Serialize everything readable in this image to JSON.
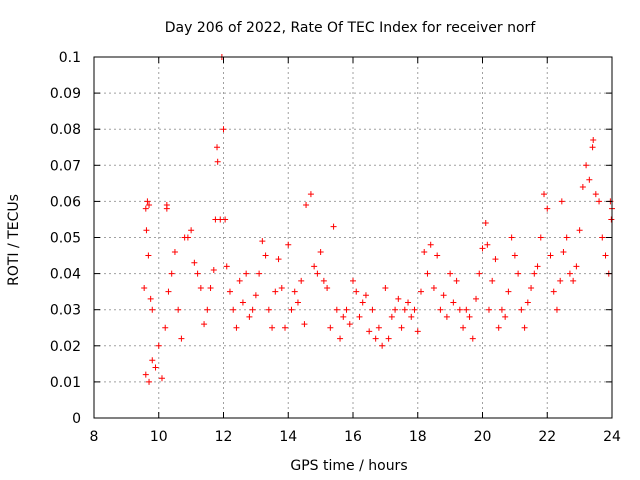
{
  "chart_data": {
    "type": "scatter",
    "title": "Day 206 of 2022, Rate Of TEC Index for receiver norf",
    "xlabel": "GPS time / hours",
    "ylabel": "ROTI / TECUs",
    "xlim": [
      8,
      24
    ],
    "ylim": [
      0,
      0.1
    ],
    "x_ticks": [
      "8",
      "10",
      "12",
      "14",
      "16",
      "18",
      "20",
      "22",
      "24"
    ],
    "y_ticks": [
      "0",
      "0.01",
      "0.02",
      "0.03",
      "0.04",
      "0.05",
      "0.06",
      "0.07",
      "0.08",
      "0.09",
      "0.1"
    ],
    "grid": true,
    "marker": "+",
    "color": "#ff0000",
    "series": [
      {
        "points": [
          [
            9.6,
            0.058
          ],
          [
            9.65,
            0.06
          ],
          [
            9.7,
            0.059
          ],
          [
            9.62,
            0.052
          ],
          [
            9.68,
            0.045
          ],
          [
            9.55,
            0.036
          ],
          [
            9.75,
            0.033
          ],
          [
            9.8,
            0.03
          ],
          [
            9.6,
            0.012
          ],
          [
            9.7,
            0.01
          ],
          [
            9.8,
            0.016
          ],
          [
            9.9,
            0.014
          ],
          [
            10.0,
            0.02
          ],
          [
            10.1,
            0.011
          ],
          [
            10.2,
            0.025
          ],
          [
            10.3,
            0.035
          ],
          [
            10.25,
            0.059
          ],
          [
            10.25,
            0.058
          ],
          [
            10.4,
            0.04
          ],
          [
            10.5,
            0.046
          ],
          [
            10.6,
            0.03
          ],
          [
            10.7,
            0.022
          ],
          [
            10.8,
            0.05
          ],
          [
            10.9,
            0.05
          ],
          [
            11.0,
            0.052
          ],
          [
            11.1,
            0.043
          ],
          [
            11.2,
            0.04
          ],
          [
            11.3,
            0.036
          ],
          [
            11.4,
            0.026
          ],
          [
            11.5,
            0.03
          ],
          [
            11.6,
            0.036
          ],
          [
            11.7,
            0.041
          ],
          [
            11.75,
            0.055
          ],
          [
            11.8,
            0.075
          ],
          [
            11.82,
            0.071
          ],
          [
            11.9,
            0.055
          ],
          [
            11.95,
            0.1
          ],
          [
            12.0,
            0.08
          ],
          [
            12.05,
            0.055
          ],
          [
            12.1,
            0.042
          ],
          [
            12.2,
            0.035
          ],
          [
            12.3,
            0.03
          ],
          [
            12.4,
            0.025
          ],
          [
            12.5,
            0.038
          ],
          [
            12.6,
            0.032
          ],
          [
            12.7,
            0.04
          ],
          [
            12.8,
            0.028
          ],
          [
            12.9,
            0.03
          ],
          [
            13.0,
            0.034
          ],
          [
            13.1,
            0.04
          ],
          [
            13.2,
            0.049
          ],
          [
            13.3,
            0.045
          ],
          [
            13.4,
            0.03
          ],
          [
            13.5,
            0.025
          ],
          [
            13.6,
            0.035
          ],
          [
            13.7,
            0.044
          ],
          [
            13.8,
            0.036
          ],
          [
            13.9,
            0.025
          ],
          [
            14.0,
            0.048
          ],
          [
            14.1,
            0.03
          ],
          [
            14.2,
            0.035
          ],
          [
            14.3,
            0.032
          ],
          [
            14.4,
            0.038
          ],
          [
            14.5,
            0.026
          ],
          [
            14.55,
            0.059
          ],
          [
            14.7,
            0.062
          ],
          [
            14.8,
            0.042
          ],
          [
            14.9,
            0.04
          ],
          [
            15.0,
            0.046
          ],
          [
            15.1,
            0.038
          ],
          [
            15.2,
            0.036
          ],
          [
            15.3,
            0.025
          ],
          [
            15.4,
            0.053
          ],
          [
            15.5,
            0.03
          ],
          [
            15.6,
            0.022
          ],
          [
            15.7,
            0.028
          ],
          [
            15.8,
            0.03
          ],
          [
            15.9,
            0.026
          ],
          [
            16.0,
            0.038
          ],
          [
            16.1,
            0.035
          ],
          [
            16.2,
            0.028
          ],
          [
            16.3,
            0.032
          ],
          [
            16.4,
            0.034
          ],
          [
            16.5,
            0.024
          ],
          [
            16.6,
            0.03
          ],
          [
            16.7,
            0.022
          ],
          [
            16.8,
            0.025
          ],
          [
            16.9,
            0.02
          ],
          [
            17.0,
            0.036
          ],
          [
            17.1,
            0.022
          ],
          [
            17.2,
            0.028
          ],
          [
            17.3,
            0.03
          ],
          [
            17.4,
            0.033
          ],
          [
            17.5,
            0.025
          ],
          [
            17.6,
            0.03
          ],
          [
            17.7,
            0.032
          ],
          [
            17.8,
            0.028
          ],
          [
            17.9,
            0.03
          ],
          [
            18.0,
            0.024
          ],
          [
            18.1,
            0.035
          ],
          [
            18.2,
            0.046
          ],
          [
            18.3,
            0.04
          ],
          [
            18.4,
            0.048
          ],
          [
            18.5,
            0.036
          ],
          [
            18.6,
            0.045
          ],
          [
            18.7,
            0.03
          ],
          [
            18.8,
            0.034
          ],
          [
            18.9,
            0.028
          ],
          [
            19.0,
            0.04
          ],
          [
            19.1,
            0.032
          ],
          [
            19.2,
            0.038
          ],
          [
            19.3,
            0.03
          ],
          [
            19.4,
            0.025
          ],
          [
            19.5,
            0.03
          ],
          [
            19.6,
            0.028
          ],
          [
            19.7,
            0.022
          ],
          [
            19.8,
            0.033
          ],
          [
            19.9,
            0.04
          ],
          [
            20.0,
            0.047
          ],
          [
            20.1,
            0.054
          ],
          [
            20.15,
            0.048
          ],
          [
            20.2,
            0.03
          ],
          [
            20.3,
            0.038
          ],
          [
            20.4,
            0.044
          ],
          [
            20.5,
            0.025
          ],
          [
            20.6,
            0.03
          ],
          [
            20.7,
            0.028
          ],
          [
            20.8,
            0.035
          ],
          [
            20.9,
            0.05
          ],
          [
            21.0,
            0.045
          ],
          [
            21.1,
            0.04
          ],
          [
            21.2,
            0.03
          ],
          [
            21.3,
            0.025
          ],
          [
            21.4,
            0.032
          ],
          [
            21.5,
            0.036
          ],
          [
            21.6,
            0.04
          ],
          [
            21.7,
            0.042
          ],
          [
            21.8,
            0.05
          ],
          [
            21.9,
            0.062
          ],
          [
            22.0,
            0.058
          ],
          [
            22.1,
            0.045
          ],
          [
            22.2,
            0.035
          ],
          [
            22.3,
            0.03
          ],
          [
            22.4,
            0.038
          ],
          [
            22.45,
            0.06
          ],
          [
            22.5,
            0.046
          ],
          [
            22.6,
            0.05
          ],
          [
            22.7,
            0.04
          ],
          [
            22.8,
            0.038
          ],
          [
            22.9,
            0.042
          ],
          [
            23.0,
            0.052
          ],
          [
            23.1,
            0.064
          ],
          [
            23.2,
            0.07
          ],
          [
            23.3,
            0.066
          ],
          [
            23.4,
            0.075
          ],
          [
            23.42,
            0.077
          ],
          [
            23.5,
            0.062
          ],
          [
            23.6,
            0.06
          ],
          [
            23.7,
            0.05
          ],
          [
            23.8,
            0.045
          ],
          [
            23.9,
            0.04
          ],
          [
            23.95,
            0.06
          ],
          [
            24.0,
            0.058
          ],
          [
            23.98,
            0.055
          ]
        ]
      }
    ]
  }
}
